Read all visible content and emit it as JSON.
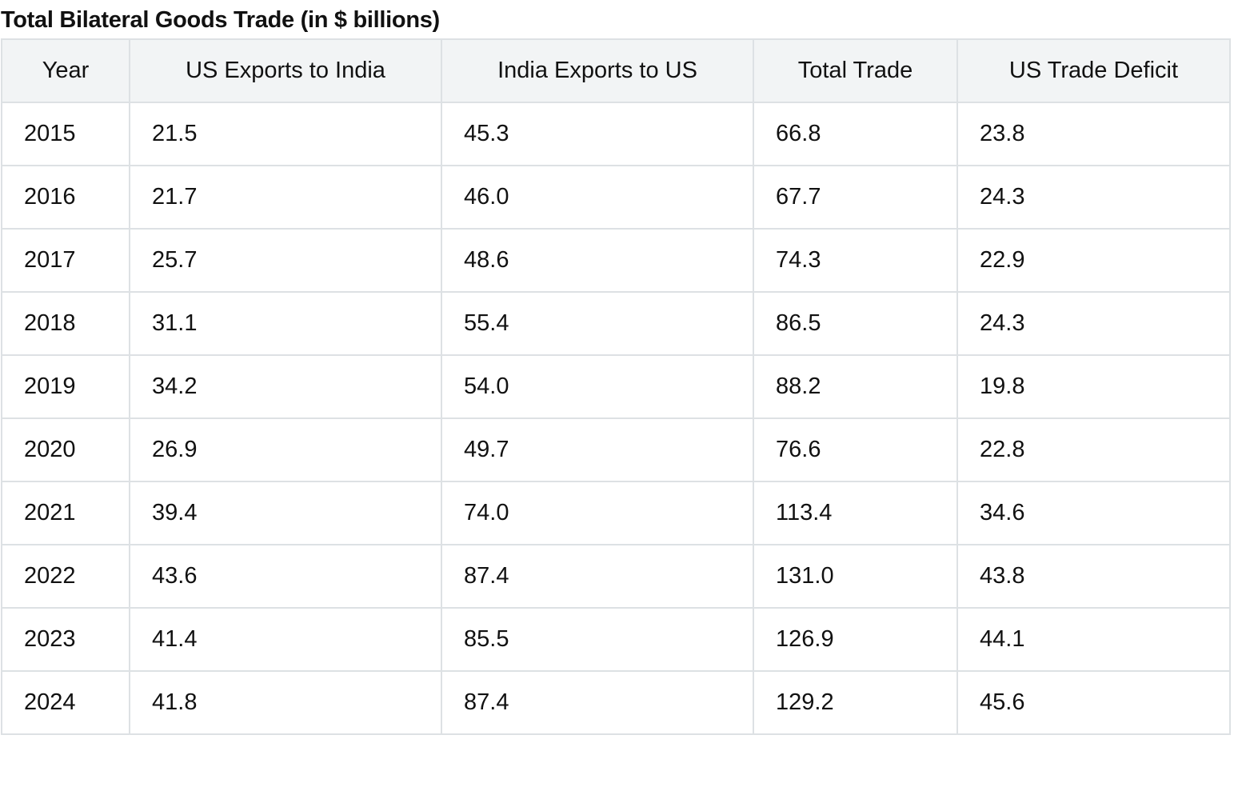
{
  "title": "Total Bilateral Goods Trade (in $ billions)",
  "table": {
    "headers": [
      "Year",
      "US Exports to India",
      "India Exports to US",
      "Total Trade",
      "US Trade Deficit"
    ],
    "rows": [
      [
        "2015",
        "21.5",
        "45.3",
        "66.8",
        "23.8"
      ],
      [
        "2016",
        "21.7",
        "46.0",
        "67.7",
        "24.3"
      ],
      [
        "2017",
        "25.7",
        "48.6",
        "74.3",
        "22.9"
      ],
      [
        "2018",
        "31.1",
        "55.4",
        "86.5",
        "24.3"
      ],
      [
        "2019",
        "34.2",
        "54.0",
        "88.2",
        "19.8"
      ],
      [
        "2020",
        "26.9",
        "49.7",
        "76.6",
        "22.8"
      ],
      [
        "2021",
        "39.4",
        "74.0",
        "113.4",
        "34.6"
      ],
      [
        "2022",
        "43.6",
        "87.4",
        "131.0",
        "43.8"
      ],
      [
        "2023",
        "41.4",
        "85.5",
        "126.9",
        "44.1"
      ],
      [
        "2024",
        "41.8",
        "87.4",
        "129.2",
        "45.6"
      ]
    ]
  },
  "colors": {
    "header_background": "#f2f4f5",
    "border": "#dde1e4",
    "text": "#111111"
  }
}
